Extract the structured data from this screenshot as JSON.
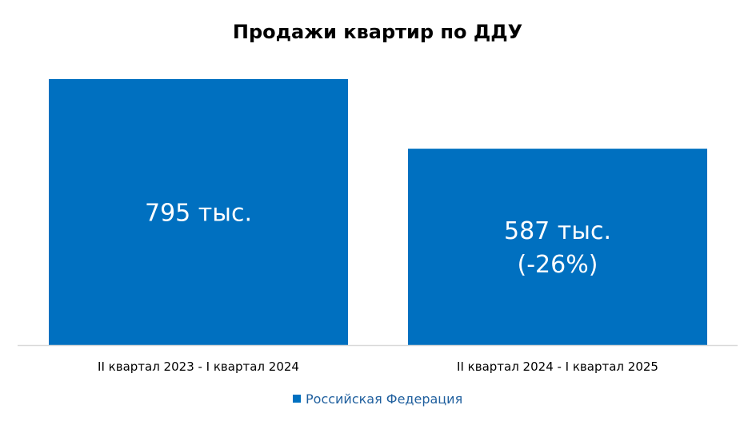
{
  "chart_data": {
    "type": "bar",
    "title": "Продажи квартир по ДДУ",
    "categories": [
      "II квартал 2023 - I квартал 2024",
      "II квартал 2024 - I квартал 2025"
    ],
    "series": [
      {
        "name": "Российская Федерация",
        "values": [
          795,
          587
        ],
        "labels": [
          [
            "795 тыс."
          ],
          [
            "587 тыс.",
            "(-26%)"
          ]
        ]
      }
    ],
    "ylim": [
      0,
      795
    ],
    "grid": false,
    "legend": "bottom",
    "colors": {
      "bar": "#0070c0",
      "axis": "#d9d9d9",
      "legend_text": "#1f5f9e"
    }
  }
}
